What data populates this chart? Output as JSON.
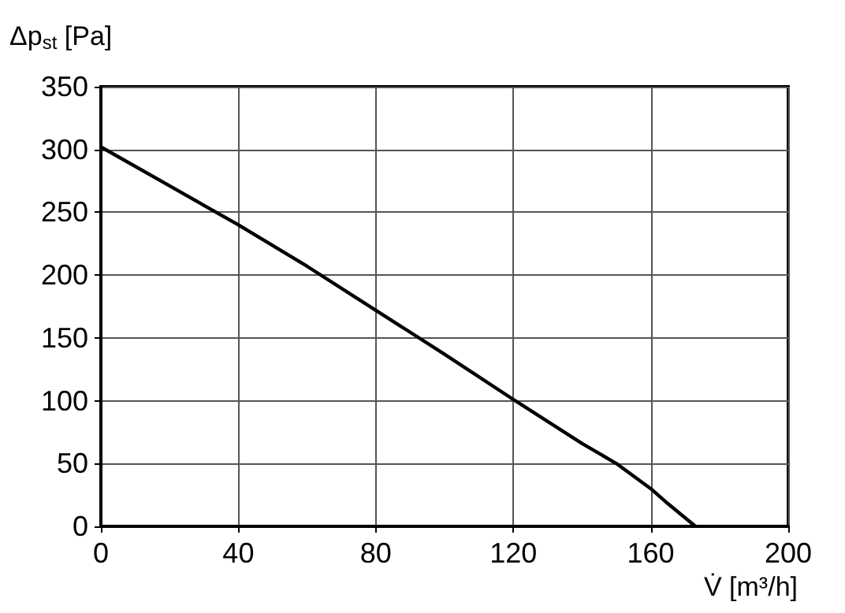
{
  "chart_data": {
    "type": "line",
    "xlabel": "V̇ [m³/h]",
    "ylabel": "Δp$_{st}$ [Pa]",
    "x": [
      0,
      20,
      40,
      60,
      80,
      100,
      120,
      140,
      150,
      160,
      165,
      173
    ],
    "series": [
      {
        "color": "#000000",
        "values": [
          302,
          271,
          240,
          207,
          172,
          137,
          101,
          66,
          50,
          30,
          18,
          0
        ]
      }
    ],
    "xlim": [
      0,
      200
    ],
    "xticks": [
      0,
      40,
      80,
      120,
      160,
      200
    ],
    "ylim": [
      0,
      350
    ],
    "yticks": [
      0,
      50,
      100,
      150,
      200,
      250,
      300,
      350
    ],
    "grid": true,
    "marker": "none",
    "line_style": "solid"
  }
}
